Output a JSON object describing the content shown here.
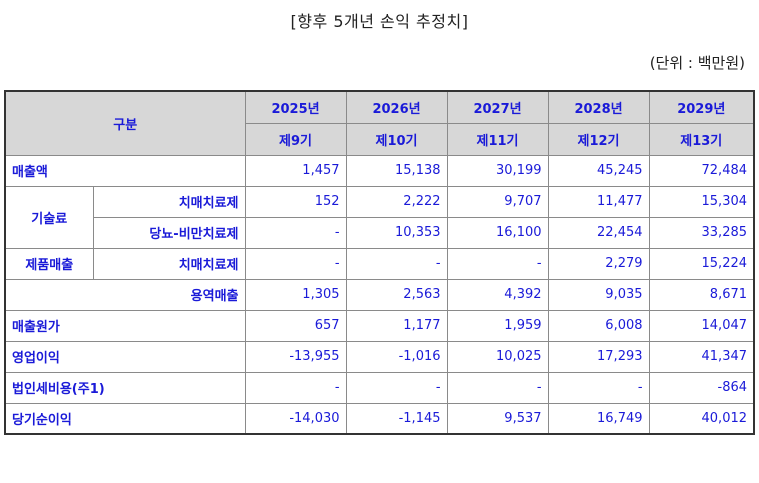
{
  "title": "[향후 5개년 손익 추정치]",
  "unit": "(단위 : 백만원)",
  "header": {
    "group_label": "구분",
    "years": [
      "2025년",
      "2026년",
      "2027년",
      "2028년",
      "2029년"
    ],
    "periods": [
      "제9기",
      "제10기",
      "제11기",
      "제12기",
      "제13기"
    ]
  },
  "rows": {
    "revenue": {
      "label": "매출액",
      "values": [
        "1,457",
        "15,138",
        "30,199",
        "45,245",
        "72,484"
      ]
    },
    "tech_fee": {
      "group_label": "기술료",
      "dementia": {
        "label": "치매치료제",
        "values": [
          "152",
          "2,222",
          "9,707",
          "11,477",
          "15,304"
        ]
      },
      "diabetes": {
        "label": "당뇨-비만치료제",
        "values": [
          "-",
          "10,353",
          "16,100",
          "22,454",
          "33,285"
        ]
      }
    },
    "product_sales": {
      "group_label": "제품매출",
      "dementia": {
        "label": "치매치료제",
        "values": [
          "-",
          "-",
          "-",
          "2,279",
          "15,224"
        ]
      }
    },
    "service_sales": {
      "label": "용역매출",
      "values": [
        "1,305",
        "2,563",
        "4,392",
        "9,035",
        "8,671"
      ]
    },
    "cogs": {
      "label": "매출원가",
      "values": [
        "657",
        "1,177",
        "1,959",
        "6,008",
        "14,047"
      ]
    },
    "operating_income": {
      "label": "영업이익",
      "values": [
        "-13,955",
        "-1,016",
        "10,025",
        "17,293",
        "41,347"
      ]
    },
    "corp_tax": {
      "label": "법인세비용(주1)",
      "values": [
        "-",
        "-",
        "-",
        "-",
        "-864"
      ]
    },
    "net_income": {
      "label": "당기순이익",
      "values": [
        "-14,030",
        "-1,145",
        "9,537",
        "16,749",
        "40,012"
      ]
    }
  }
}
